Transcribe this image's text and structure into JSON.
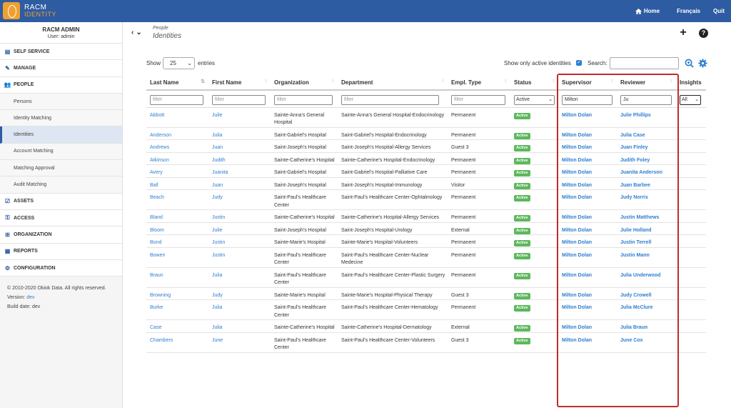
{
  "app": {
    "logo_line1": "RACM",
    "logo_line2": "IDENTITY"
  },
  "topnav": {
    "home": "Home",
    "language": "Français",
    "quit": "Quit"
  },
  "sidebar": {
    "user_name": "RACM ADMIN",
    "user_role": "User: admin",
    "items": [
      {
        "label": "SELF SERVICE",
        "icon": "clipboard-icon"
      },
      {
        "label": "MANAGE",
        "icon": "wrench-icon"
      },
      {
        "label": "PEOPLE",
        "icon": "users-icon"
      },
      {
        "label": "Persons",
        "sub": true
      },
      {
        "label": "Identity Matching",
        "sub": true
      },
      {
        "label": "Identities",
        "sub": true,
        "active": true
      },
      {
        "label": "Account Matching",
        "sub": true
      },
      {
        "label": "Matching Approval",
        "sub": true
      },
      {
        "label": "Audit Matching",
        "sub": true
      },
      {
        "label": "ASSETS",
        "icon": "check-icon"
      },
      {
        "label": "ACCESS",
        "icon": "key-icon"
      },
      {
        "label": "ORGANIZATION",
        "icon": "sitemap-icon"
      },
      {
        "label": "REPORTS",
        "icon": "report-icon"
      },
      {
        "label": "CONFIGURATION",
        "icon": "gear-icon"
      }
    ],
    "footer_copyright": "© 2010-2020 Okiok Data. All rights reserved.",
    "footer_version_label": "Version:",
    "footer_version_value": "dev",
    "footer_build": "Build date: dev"
  },
  "header": {
    "breadcrumb": "People",
    "title": "Identities"
  },
  "controls": {
    "show_label": "Show",
    "show_value": "25",
    "entries_label": "entries",
    "active_only_label": "Show only active identities",
    "search_label": "Search:",
    "search_value": ""
  },
  "table": {
    "columns": [
      "Last Name",
      "First Name",
      "Organization",
      "Department",
      "Empl. Type",
      "Status",
      "Supervisor",
      "Reviewer",
      "Insights"
    ],
    "filters": {
      "last_name": "filter",
      "first_name": "filter",
      "organization": "filter",
      "department": "filter",
      "empl_type": "filter",
      "status": "Active",
      "supervisor": "Milton",
      "reviewer": "Ju",
      "insights": "All"
    },
    "rows": [
      {
        "last": "Abbott",
        "first": "Julie",
        "org": "Sainte-Anna's General Hospital",
        "dept": "Sainte-Anna's General Hospital-Endocrinology",
        "type": "Permanent",
        "status": "Active",
        "supervisor": "Milton Dolan",
        "reviewer": "Julie Phillips"
      },
      {
        "last": "Anderson",
        "first": "Julia",
        "org": "Saint-Gabriel's Hospital",
        "dept": "Saint-Gabriel's Hospital-Endocrinology",
        "type": "Permanent",
        "status": "Active",
        "supervisor": "Milton Dolan",
        "reviewer": "Julia Case"
      },
      {
        "last": "Andrews",
        "first": "Juan",
        "org": "Saint-Joseph's Hospital",
        "dept": "Saint-Joseph's Hospital-Allergy Services",
        "type": "Guest 3",
        "status": "Active",
        "supervisor": "Milton Dolan",
        "reviewer": "Juan Finley"
      },
      {
        "last": "Atkinson",
        "first": "Judith",
        "org": "Sainte-Catherine's Hospital",
        "dept": "Sainte-Catherine's Hospital-Endocrinology",
        "type": "Permanent",
        "status": "Active",
        "supervisor": "Milton Dolan",
        "reviewer": "Judith Foley"
      },
      {
        "last": "Avery",
        "first": "Juanita",
        "org": "Saint-Gabriel's Hospital",
        "dept": "Saint-Gabriel's Hospital-Palliative Care",
        "type": "Permanent",
        "status": "Active",
        "supervisor": "Milton Dolan",
        "reviewer": "Juanita Anderson"
      },
      {
        "last": "Ball",
        "first": "Juan",
        "org": "Saint-Joseph's Hospital",
        "dept": "Saint-Joseph's Hospital-Immunology",
        "type": "Visitor",
        "status": "Active",
        "supervisor": "Milton Dolan",
        "reviewer": "Juan Barbee"
      },
      {
        "last": "Beach",
        "first": "Judy",
        "org": "Saint-Paul's Healthcare Center",
        "dept": "Saint-Paul's Healthcare Center-Ophtalmology",
        "type": "Permanent",
        "status": "Active",
        "supervisor": "Milton Dolan",
        "reviewer": "Judy Norris"
      },
      {
        "last": "Bland",
        "first": "Justin",
        "org": "Sainte-Catherine's Hospital",
        "dept": "Sainte-Catherine's Hospital-Allergy Services",
        "type": "Permanent",
        "status": "Active",
        "supervisor": "Milton Dolan",
        "reviewer": "Justin Matthews"
      },
      {
        "last": "Bloom",
        "first": "Julie",
        "org": "Saint-Joseph's Hospital",
        "dept": "Saint-Joseph's Hospital-Urology",
        "type": "External",
        "status": "Active",
        "supervisor": "Milton Dolan",
        "reviewer": "Julie Holland"
      },
      {
        "last": "Bond",
        "first": "Justin",
        "org": "Sainte-Marie's Hospital",
        "dept": "Sainte-Marie's Hospital-Volunteers",
        "type": "Permanent",
        "status": "Active",
        "supervisor": "Milton Dolan",
        "reviewer": "Justin Terrell"
      },
      {
        "last": "Bowen",
        "first": "Justin",
        "org": "Saint-Paul's Healthcare Center",
        "dept": "Saint-Paul's Healthcare Center-Nuclear Medecine",
        "type": "Permanent",
        "status": "Active",
        "supervisor": "Milton Dolan",
        "reviewer": "Justin Mann"
      },
      {
        "last": "Braun",
        "first": "Julia",
        "org": "Saint-Paul's Healthcare Center",
        "dept": "Saint-Paul's Healthcare Center-Plastic Surgery",
        "type": "Permanent",
        "status": "Active",
        "supervisor": "Milton Dolan",
        "reviewer": "Julia Underwood"
      },
      {
        "last": "Browning",
        "first": "Judy",
        "org": "Sainte-Marie's Hospital",
        "dept": "Sainte-Marie's Hospital-Physical Therapy",
        "type": "Guest 3",
        "status": "Active",
        "supervisor": "Milton Dolan",
        "reviewer": "Judy Crowell"
      },
      {
        "last": "Burke",
        "first": "Julia",
        "org": "Saint-Paul's Healthcare Center",
        "dept": "Saint-Paul's Healthcare Center-Hematology",
        "type": "Permanent",
        "status": "Active",
        "supervisor": "Milton Dolan",
        "reviewer": "Julia McClure"
      },
      {
        "last": "Case",
        "first": "Julia",
        "org": "Sainte-Catherine's Hospital",
        "dept": "Sainte-Catherine's Hospital-Dermatology",
        "type": "External",
        "status": "Active",
        "supervisor": "Milton Dolan",
        "reviewer": "Julia Braun"
      },
      {
        "last": "Chambers",
        "first": "June",
        "org": "Saint-Paul's Healthcare Center",
        "dept": "Saint-Paul's Healthcare Center-Volunteers",
        "type": "Guest 3",
        "status": "Active",
        "supervisor": "Milton Dolan",
        "reviewer": "June Cox"
      }
    ]
  },
  "colors": {
    "brand": "#2e5ca2",
    "accent": "#f0a030",
    "link": "#2e7ed1",
    "active_badge": "#5cb85c",
    "highlight": "#c42a2a"
  }
}
